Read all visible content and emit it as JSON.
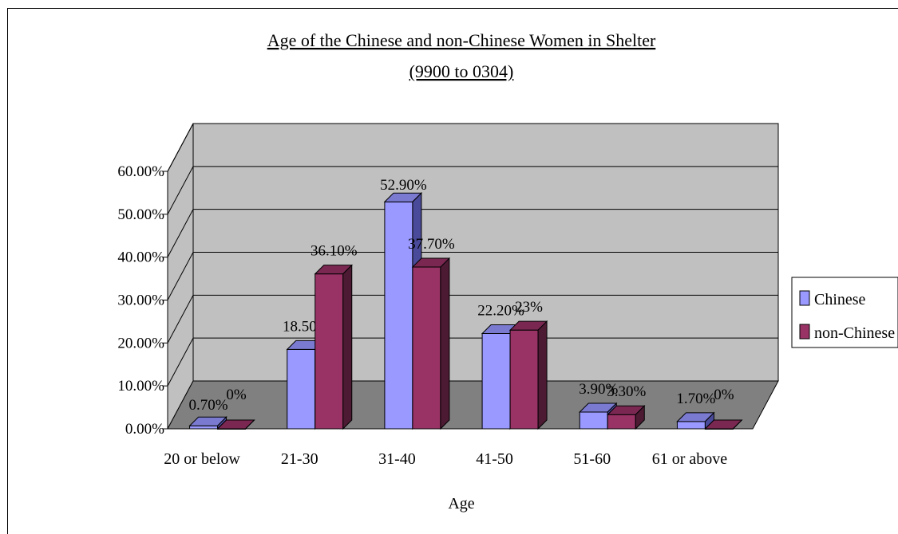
{
  "chart_data": {
    "type": "bar",
    "title": "Age of the Chinese and non-Chinese Women in Shelter",
    "subtitle": "(9900 to 0304)",
    "xlabel": "Age",
    "ylabel": "",
    "categories": [
      "20 or below",
      "21-30",
      "31-40",
      "41-50",
      "51-60",
      "61 or above"
    ],
    "series": [
      {
        "name": "Chinese",
        "values": [
          0.7,
          18.5,
          52.9,
          22.2,
          3.9,
          1.7
        ],
        "labels": [
          "0.70%",
          "18.50%",
          "52.90%",
          "22.20%",
          "3.90%",
          "1.70%"
        ]
      },
      {
        "name": "non-Chinese",
        "values": [
          0,
          36.1,
          37.7,
          23,
          3.3,
          0
        ],
        "labels": [
          "0%",
          "36.10%",
          "37.70%",
          "23%",
          "3.30%",
          "0%"
        ]
      }
    ],
    "ylim": [
      0,
      60
    ],
    "yticks": [
      "0.00%",
      "10.00%",
      "20.00%",
      "30.00%",
      "40.00%",
      "50.00%",
      "60.00%"
    ],
    "grid": true,
    "legend": "right",
    "three_d": true
  },
  "colors": {
    "chinese_front": "#9999ff",
    "chinese_top": "#7a7ad0",
    "chinese_side": "#4a4a9a",
    "nonchinese_front": "#993366",
    "nonchinese_top": "#7a2852",
    "nonchinese_side": "#4d1a33",
    "wall": "#c0c0c0",
    "floor": "#808080"
  }
}
